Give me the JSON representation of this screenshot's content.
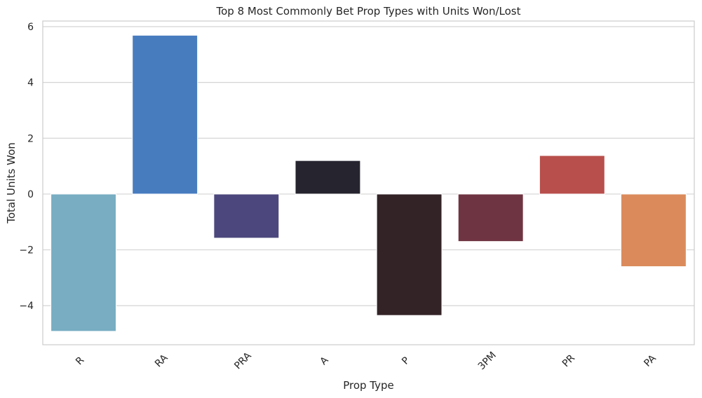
{
  "chart_data": {
    "type": "bar",
    "title": "Top 8 Most Commonly Bet Prop Types with Units Won/Lost",
    "xlabel": "Prop Type",
    "ylabel": "Total Units Won",
    "categories": [
      "R",
      "RA",
      "PRA",
      "A",
      "P",
      "3PM",
      "PR",
      "PA"
    ],
    "values": [
      -4.92,
      5.69,
      -1.58,
      1.2,
      -4.35,
      -1.7,
      1.38,
      -2.6
    ],
    "colors": [
      "#78adc2",
      "#477cbf",
      "#4c487d",
      "#26242f",
      "#332226",
      "#6f3442",
      "#b84f4c",
      "#db8b5b"
    ],
    "ylim": [
      -5.4,
      6.2
    ],
    "yticks": [
      -4,
      -2,
      0,
      2,
      4,
      6
    ],
    "ytick_labels": [
      "−4",
      "−2",
      "0",
      "2",
      "4",
      "6"
    ],
    "grid": true
  }
}
